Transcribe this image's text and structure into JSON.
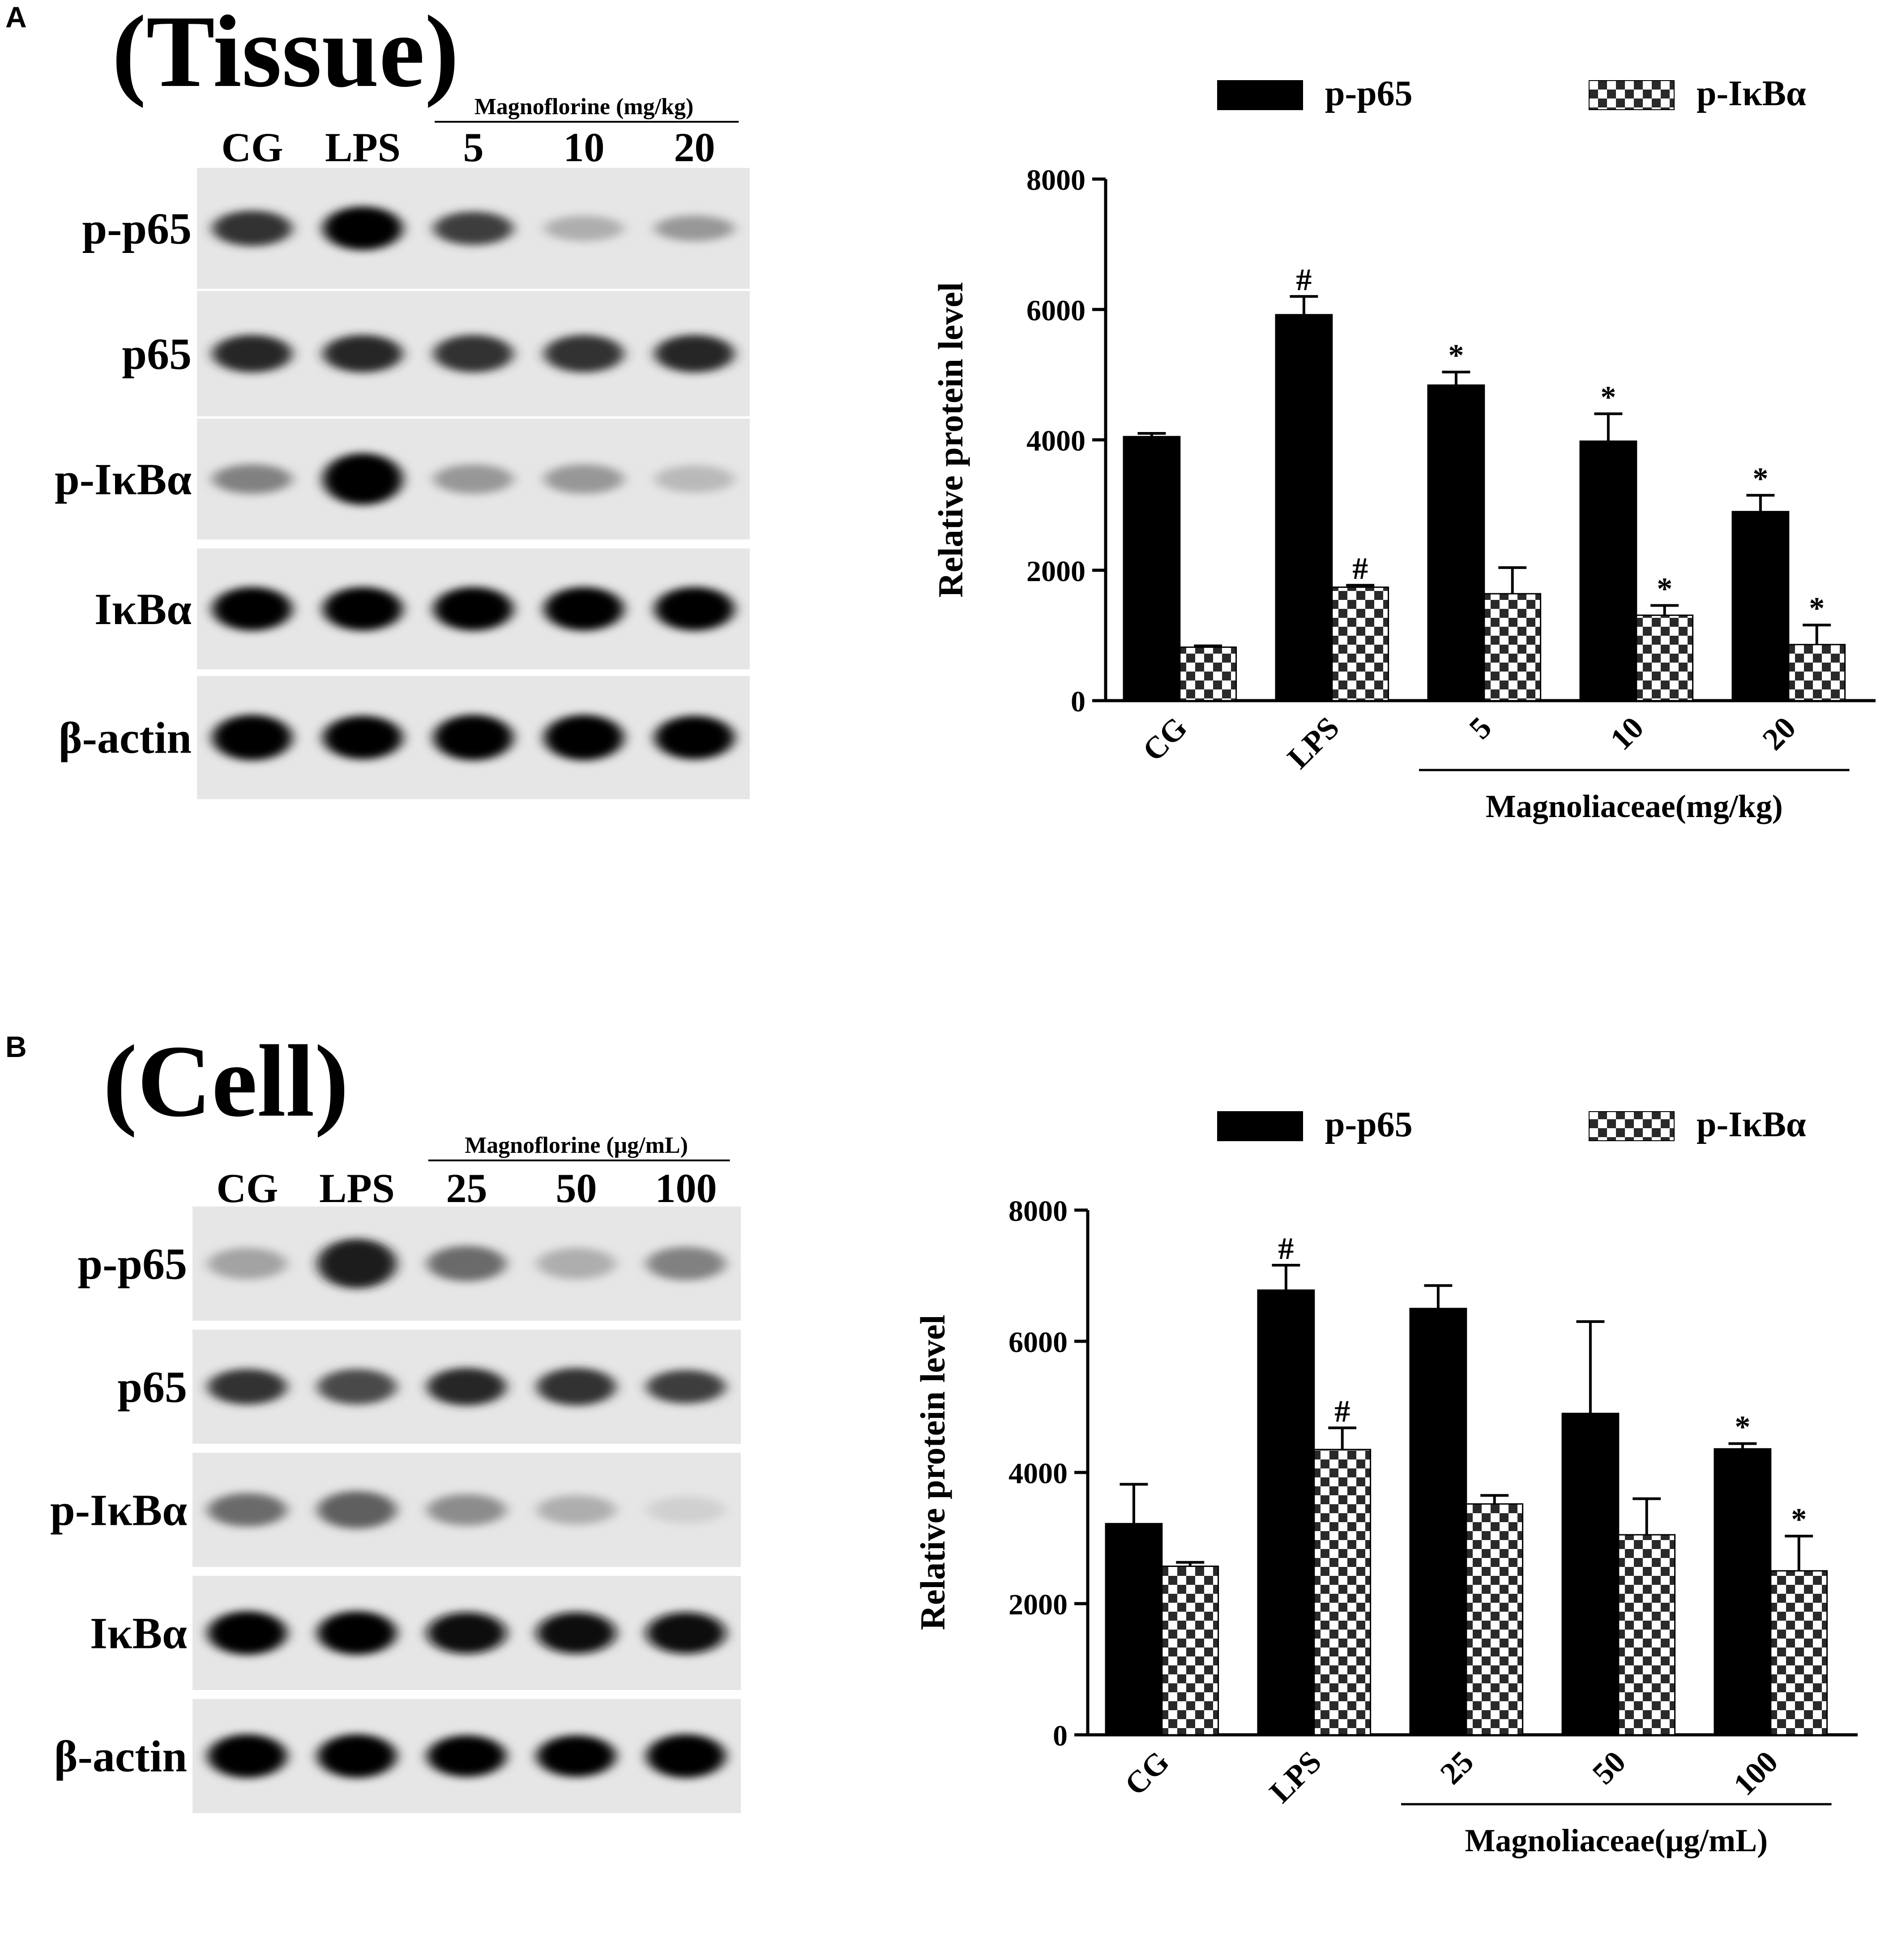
{
  "panels": [
    {
      "letter": "A",
      "title": "(Tissue)",
      "blot": {
        "treatment_label": "Magnoflorine (mg/kg)",
        "lanes": [
          "CG",
          "LPS",
          "5",
          "10",
          "20"
        ],
        "rows": [
          {
            "label": "p-p65",
            "intensities": [
              0.8,
              1.0,
              0.75,
              0.25,
              0.35
            ],
            "thickness": [
              0.55,
              0.75,
              0.5,
              0.3,
              0.3
            ]
          },
          {
            "label": "p65",
            "intensities": [
              0.85,
              0.85,
              0.8,
              0.8,
              0.85
            ],
            "thickness": [
              0.6,
              0.6,
              0.6,
              0.6,
              0.6
            ]
          },
          {
            "label": "p-IκBα",
            "intensities": [
              0.45,
              1.0,
              0.35,
              0.35,
              0.2
            ],
            "thickness": [
              0.4,
              0.95,
              0.4,
              0.4,
              0.35
            ]
          },
          {
            "label": "IκBα",
            "intensities": [
              1.0,
              1.0,
              1.0,
              1.0,
              1.0
            ],
            "thickness": [
              0.75,
              0.75,
              0.75,
              0.75,
              0.75
            ]
          },
          {
            "label": "β-actin",
            "intensities": [
              1.0,
              1.0,
              1.0,
              1.0,
              1.0
            ],
            "thickness": [
              0.8,
              0.75,
              0.8,
              0.8,
              0.75
            ]
          }
        ]
      }
    },
    {
      "letter": "B",
      "title": "(Cell)",
      "blot": {
        "treatment_label": "Magnoflorine (μg/mL)",
        "lanes": [
          "CG",
          "LPS",
          "25",
          "50",
          "100"
        ],
        "rows": [
          {
            "label": "p-p65",
            "intensities": [
              0.3,
              0.9,
              0.55,
              0.25,
              0.45
            ],
            "thickness": [
              0.45,
              0.9,
              0.55,
              0.45,
              0.5
            ]
          },
          {
            "label": "p65",
            "intensities": [
              0.8,
              0.7,
              0.85,
              0.8,
              0.75
            ],
            "thickness": [
              0.55,
              0.55,
              0.6,
              0.6,
              0.5
            ]
          },
          {
            "label": "p-IκBα",
            "intensities": [
              0.55,
              0.6,
              0.4,
              0.25,
              0.1
            ],
            "thickness": [
              0.5,
              0.6,
              0.45,
              0.4,
              0.35
            ]
          },
          {
            "label": "IκBα",
            "intensities": [
              1.0,
              1.0,
              0.95,
              0.95,
              0.95
            ],
            "thickness": [
              0.75,
              0.75,
              0.7,
              0.7,
              0.7
            ]
          },
          {
            "label": "β-actin",
            "intensities": [
              1.0,
              1.0,
              1.0,
              1.0,
              1.0
            ],
            "thickness": [
              0.75,
              0.75,
              0.7,
              0.7,
              0.75
            ]
          }
        ]
      }
    }
  ],
  "chart_data": [
    {
      "type": "bar",
      "categories": [
        "CG",
        "LPS",
        "5",
        "10",
        "20"
      ],
      "group_label": "Magnoliaceae(mg/kg)",
      "group_start_index": 2,
      "ylabel": "Relative protein level",
      "ylim": [
        0,
        8000
      ],
      "yticks": [
        0,
        2000,
        4000,
        6000,
        8000
      ],
      "legend_position": "top",
      "series": [
        {
          "name": "p-p65",
          "color": "#000000",
          "pattern": "solid",
          "values": [
            4050,
            5920,
            4840,
            3980,
            2900
          ],
          "errors": [
            50,
            280,
            200,
            420,
            250
          ],
          "marks": [
            "",
            "#",
            "*",
            "*",
            "*"
          ]
        },
        {
          "name": "p-IκBα",
          "color": "#000000",
          "pattern": "checker",
          "values": [
            820,
            1740,
            1640,
            1310,
            860
          ],
          "errors": [
            20,
            30,
            400,
            150,
            300
          ],
          "marks": [
            "",
            "#",
            "",
            "*",
            "*"
          ]
        }
      ]
    },
    {
      "type": "bar",
      "categories": [
        "CG",
        "LPS",
        "25",
        "50",
        "100"
      ],
      "group_label": "Magnoliaceae(μg/mL)",
      "group_start_index": 2,
      "ylabel": "Relative protein level",
      "ylim": [
        0,
        8000
      ],
      "yticks": [
        0,
        2000,
        4000,
        6000,
        8000
      ],
      "legend_position": "top",
      "series": [
        {
          "name": "p-p65",
          "color": "#000000",
          "pattern": "solid",
          "values": [
            3220,
            6780,
            6500,
            4900,
            4360
          ],
          "errors": [
            600,
            380,
            350,
            1400,
            80
          ],
          "marks": [
            "",
            "#",
            "",
            "",
            "*"
          ]
        },
        {
          "name": "p-IκBα",
          "color": "#000000",
          "pattern": "checker",
          "values": [
            2570,
            4350,
            3520,
            3050,
            2500
          ],
          "errors": [
            60,
            330,
            130,
            550,
            530
          ],
          "marks": [
            "",
            "#",
            "",
            "",
            "*"
          ]
        }
      ]
    }
  ]
}
